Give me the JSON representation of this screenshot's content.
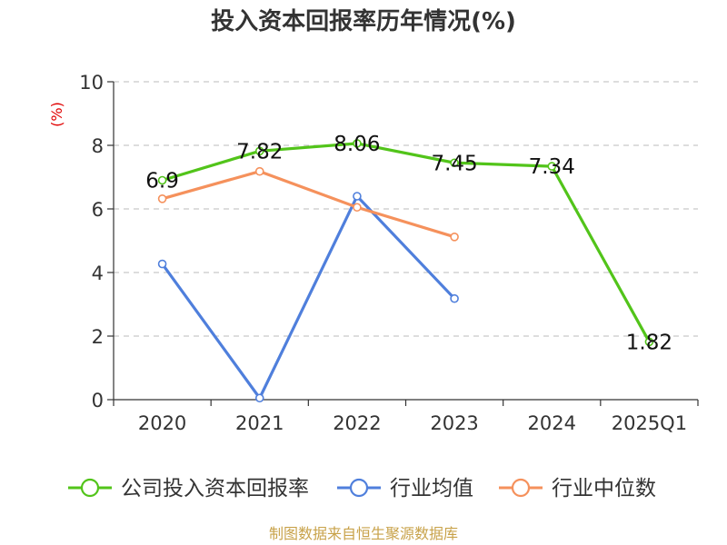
{
  "chart_data": {
    "type": "line",
    "title": "投入资本回报率历年情况(%)",
    "y_unit": "(%)",
    "categories": [
      "2020",
      "2021",
      "2022",
      "2023",
      "2024",
      "2025Q1"
    ],
    "ylim": [
      0,
      10
    ],
    "y_ticks": [
      "0",
      "2",
      "4",
      "6",
      "8",
      "10"
    ],
    "grid": true,
    "legend_position": "bottom",
    "series": [
      {
        "name": "公司投入资本回报率",
        "color": "#52c41a",
        "values": [
          6.9,
          7.82,
          8.06,
          7.45,
          7.34,
          1.82
        ],
        "labels": [
          "6.9",
          "7.82",
          "8.06",
          "7.45",
          "7.34",
          "1.82"
        ]
      },
      {
        "name": "行业均值",
        "color": "#4f7fdc",
        "values": [
          4.27,
          0.05,
          6.4,
          3.18,
          null,
          null
        ]
      },
      {
        "name": "行业中位数",
        "color": "#f5915c",
        "values": [
          6.32,
          7.18,
          6.05,
          5.12,
          null,
          null
        ]
      }
    ],
    "source": "制图数据来自恒生聚源数据库"
  }
}
